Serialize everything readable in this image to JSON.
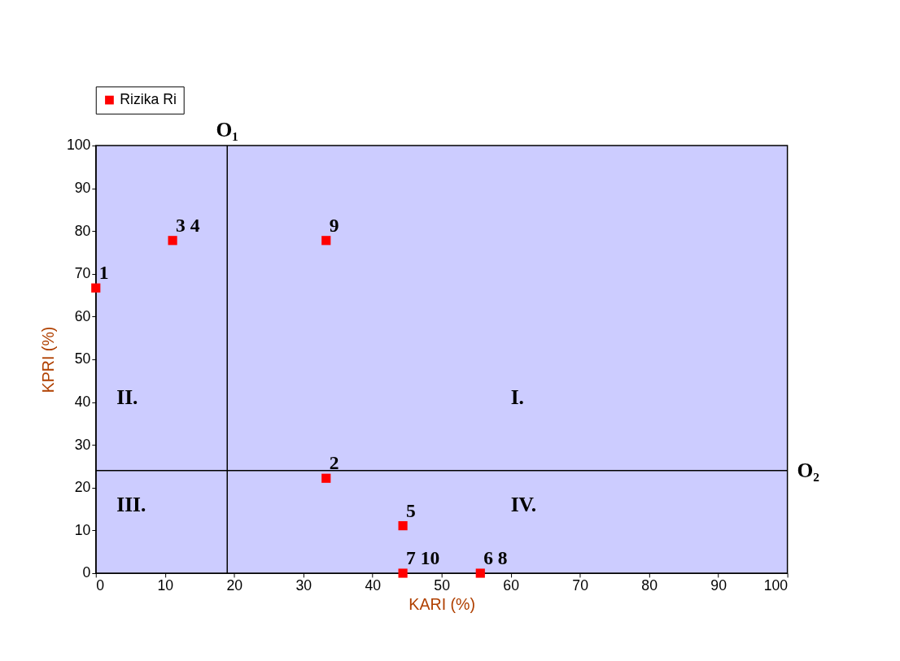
{
  "chart_data": {
    "type": "scatter",
    "xlabel": "KARI (%)",
    "ylabel": "KPRI (%)",
    "x": [
      0,
      11.1,
      33.3,
      33.3,
      44.4,
      44.4,
      55.6
    ],
    "series": [
      {
        "name": "Rizika Ri",
        "color": "#ff0000",
        "values": [
          66.7,
          77.8,
          77.8,
          22.2,
          11.1,
          0,
          0
        ]
      }
    ],
    "xlim": [
      0,
      100
    ],
    "ylim": [
      0,
      100
    ],
    "xticks": [
      0,
      10,
      20,
      30,
      40,
      50,
      60,
      70,
      80,
      90,
      100
    ],
    "yticks": [
      0,
      10,
      20,
      30,
      40,
      50,
      60,
      70,
      80,
      90,
      100
    ],
    "marker": "square",
    "grid": false,
    "legend": "top",
    "ref_lines": [
      {
        "axis": "x",
        "value": 19,
        "label": "O₁",
        "color": "#000000"
      },
      {
        "axis": "y",
        "value": 24,
        "label": "O₂",
        "color": "#000000"
      }
    ],
    "annotations": [
      {
        "text": "1",
        "x": 0,
        "y": 66.7
      },
      {
        "text": "3 4",
        "x": 11.1,
        "y": 77.8
      },
      {
        "text": "9",
        "x": 33.3,
        "y": 77.8
      },
      {
        "text": "2",
        "x": 33.3,
        "y": 22.2
      },
      {
        "text": "5",
        "x": 44.4,
        "y": 11.1
      },
      {
        "text": "7 10",
        "x": 44.4,
        "y": 0
      },
      {
        "text": "6 8",
        "x": 55.6,
        "y": 0
      },
      "I.",
      "II.",
      "III.",
      "IV."
    ]
  }
}
